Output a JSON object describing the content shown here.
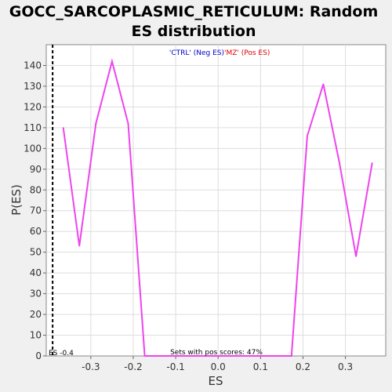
{
  "chart_data": {
    "type": "line",
    "title_line1": "GOCC_SARCOPLASMIC_RETICULUM: Random",
    "title_line2": "ES distribution",
    "xlabel": "ES",
    "ylabel": "P(ES)",
    "xlim": [
      -0.405,
      0.395
    ],
    "ylim": [
      0,
      150
    ],
    "xticks": [
      -0.3,
      -0.2,
      -0.1,
      0.0,
      0.1,
      0.2,
      0.3
    ],
    "xtick_labels": [
      "-0.3",
      "-0.2",
      "-0.1",
      "0.0",
      "0.1",
      "0.2",
      "0.3"
    ],
    "yticks": [
      0,
      10,
      20,
      30,
      40,
      50,
      60,
      70,
      80,
      90,
      100,
      110,
      120,
      130,
      140
    ],
    "ytick_labels": [
      "0",
      "10",
      "20",
      "30",
      "40",
      "50",
      "60",
      "70",
      "80",
      "90",
      "100",
      "110",
      "120",
      "130",
      "140"
    ],
    "grid": true,
    "legend": {
      "neg_label": "'CTRL' (Neg ES)",
      "pos_label": "'MZ' (Pos ES)",
      "neg_color": "#0000cc",
      "pos_color": "#dd0000"
    },
    "annotation_bottom": "Sets with pos scores: 47%",
    "annotation_es": "ES -0.4",
    "es_marker_x": -0.39,
    "series": [
      {
        "color": "#ee44ee",
        "x": [
          -0.365,
          -0.327,
          -0.288,
          -0.25,
          -0.212,
          -0.173,
          0.173,
          0.21,
          0.248,
          0.286,
          0.325,
          0.363
        ],
        "y": [
          110,
          53,
          112,
          142,
          112,
          0,
          0,
          106,
          131,
          93,
          48,
          93
        ]
      }
    ]
  }
}
